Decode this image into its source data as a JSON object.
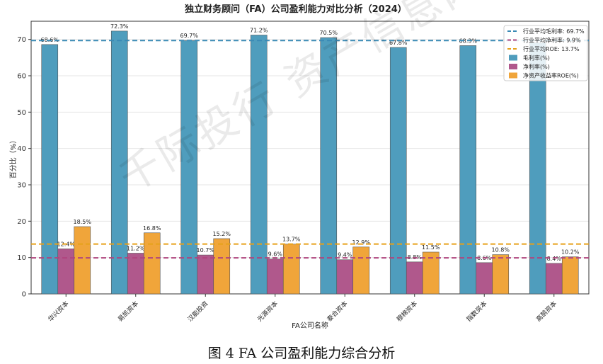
{
  "caption": "图 4    FA 公司盈利能力综合分析",
  "watermark": "千际投行 资产信息网",
  "chart_data": {
    "type": "bar",
    "title": "独立财务顾问（FA）公司盈利能力对比分析（2024）",
    "xlabel": "FA公司名称",
    "ylabel": "百分比（%）",
    "ylim": [
      0,
      75
    ],
    "yticks": [
      0,
      10,
      20,
      30,
      40,
      50,
      60,
      70
    ],
    "grid": true,
    "legend_position": "top-right",
    "categories": [
      "华兴资本",
      "易凯资本",
      "汉能投资",
      "光源资本",
      "泰合资本",
      "穆棉资本",
      "指数资本",
      "高鹄资本"
    ],
    "series": [
      {
        "name": "毛利率(%)",
        "color": "#4f9dbd",
        "values": [
          68.6,
          72.3,
          69.7,
          71.2,
          70.5,
          67.8,
          68.3,
          69.1
        ]
      },
      {
        "name": "净利率(%)",
        "color": "#b0588c",
        "values": [
          12.4,
          11.2,
          10.7,
          9.6,
          9.4,
          8.8,
          8.6,
          8.4
        ]
      },
      {
        "name": "净资产收益率ROE(%)",
        "color": "#f0a53a",
        "values": [
          18.5,
          16.8,
          15.2,
          13.7,
          12.9,
          11.5,
          10.8,
          10.2
        ]
      }
    ],
    "value_labels": [
      [
        "68.6%",
        "72.3%",
        "69.7%",
        "71.2%",
        "70.5%",
        "67.8%",
        "68.3%",
        ""
      ],
      [
        "12.4%",
        "11.2%",
        "10.7%",
        "9.6%",
        "9.4%",
        "8.8%",
        "8.6%",
        "8.4%"
      ],
      [
        "18.5%",
        "16.8%",
        "15.2%",
        "13.7%",
        "12.9%",
        "11.5%",
        "10.8%",
        "10.2%"
      ]
    ],
    "reference_lines": [
      {
        "name": "行业平均毛利率: 69.7%",
        "value": 69.7,
        "color": "#3a8ab5"
      },
      {
        "name": "行业平均净利率: 9.9%",
        "value": 9.9,
        "color": "#b0447e"
      },
      {
        "name": "行业平均ROE: 13.7%",
        "value": 13.7,
        "color": "#e6a11a"
      }
    ]
  }
}
